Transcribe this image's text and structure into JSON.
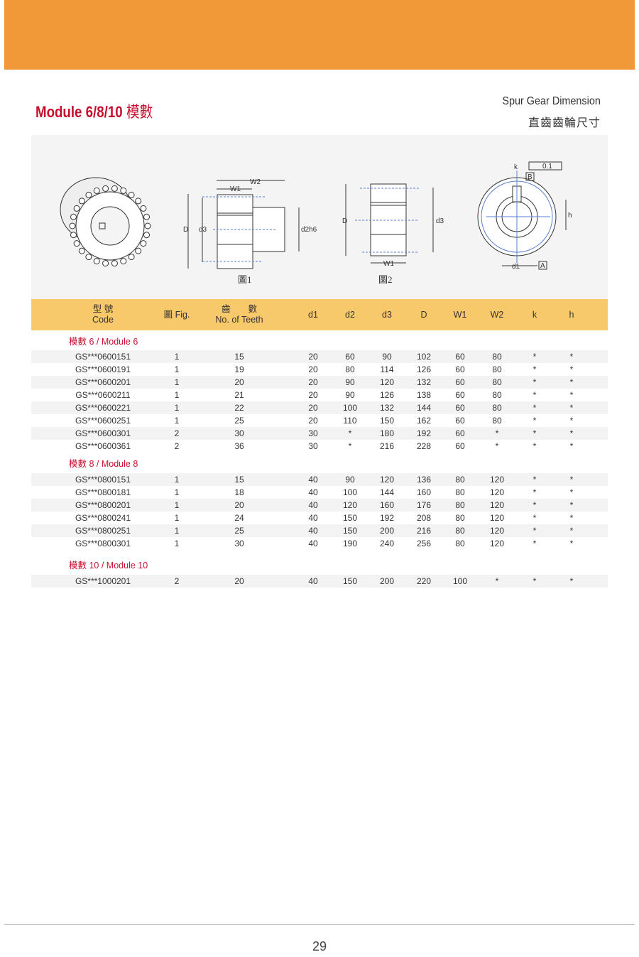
{
  "header": {
    "title_en": "Module 6/8/10",
    "title_zh": "模數",
    "subtitle_en": "Spur Gear Dimension",
    "subtitle_zh": "直齒齒輪尺寸"
  },
  "figures": {
    "fig1": {
      "caption": "圖1",
      "labels": {
        "W2": "W2",
        "W1": "W1",
        "D": "D",
        "d3": "d3",
        "d2h6": "d2h6"
      }
    },
    "fig2": {
      "caption": "圖2",
      "labels": {
        "D": "D",
        "d3": "d3",
        "W1": "W1"
      }
    },
    "fig3": {
      "labels": {
        "k": "k",
        "tol": "0.1",
        "B": "B",
        "h": "h",
        "d1": "d1",
        "A": "A"
      }
    }
  },
  "table": {
    "columns": [
      {
        "zh": "型 號",
        "en": "Code"
      },
      {
        "zh": "",
        "en": "圖 Fig."
      },
      {
        "zh": "齒　　數",
        "en": "No. of Teeth"
      },
      {
        "zh": "",
        "en": "d1"
      },
      {
        "zh": "",
        "en": "d2"
      },
      {
        "zh": "",
        "en": "d3"
      },
      {
        "zh": "",
        "en": "D"
      },
      {
        "zh": "",
        "en": "W1"
      },
      {
        "zh": "",
        "en": "W2"
      },
      {
        "zh": "",
        "en": "k"
      },
      {
        "zh": "",
        "en": "h"
      }
    ],
    "sections": [
      {
        "label": "模數 6 /  Module 6",
        "rows": [
          [
            "GS***0600151",
            "1",
            "15",
            "20",
            "60",
            "90",
            "102",
            "60",
            "80",
            "*",
            "*"
          ],
          [
            "GS***0600191",
            "1",
            "19",
            "20",
            "80",
            "114",
            "126",
            "60",
            "80",
            "*",
            "*"
          ],
          [
            "GS***0600201",
            "1",
            "20",
            "20",
            "90",
            "120",
            "132",
            "60",
            "80",
            "*",
            "*"
          ],
          [
            "GS***0600211",
            "1",
            "21",
            "20",
            "90",
            "126",
            "138",
            "60",
            "80",
            "*",
            "*"
          ],
          [
            "GS***0600221",
            "1",
            "22",
            "20",
            "100",
            "132",
            "144",
            "60",
            "80",
            "*",
            "*"
          ],
          [
            "GS***0600251",
            "1",
            "25",
            "20",
            "110",
            "150",
            "162",
            "60",
            "80",
            "*",
            "*"
          ],
          [
            "GS***0600301",
            "2",
            "30",
            "30",
            "*",
            "180",
            "192",
            "60",
            "*",
            "*",
            "*"
          ],
          [
            "GS***0600361",
            "2",
            "36",
            "30",
            "*",
            "216",
            "228",
            "60",
            "*",
            "*",
            "*"
          ]
        ]
      },
      {
        "label": "模數 8 /  Module 8",
        "rows": [
          [
            "GS***0800151",
            "1",
            "15",
            "40",
            "90",
            "120",
            "136",
            "80",
            "120",
            "*",
            "*"
          ],
          [
            "GS***0800181",
            "1",
            "18",
            "40",
            "100",
            "144",
            "160",
            "80",
            "120",
            "*",
            "*"
          ],
          [
            "GS***0800201",
            "1",
            "20",
            "40",
            "120",
            "160",
            "176",
            "80",
            "120",
            "*",
            "*"
          ],
          [
            "GS***0800241",
            "1",
            "24",
            "40",
            "150",
            "192",
            "208",
            "80",
            "120",
            "*",
            "*"
          ],
          [
            "GS***0800251",
            "1",
            "25",
            "40",
            "150",
            "200",
            "216",
            "80",
            "120",
            "*",
            "*"
          ],
          [
            "GS***0800301",
            "1",
            "30",
            "40",
            "190",
            "240",
            "256",
            "80",
            "120",
            "*",
            "*"
          ]
        ]
      },
      {
        "label": "模數 10 /  Module 10",
        "rows": [
          [
            "GS***1000201",
            "2",
            "20",
            "40",
            "150",
            "200",
            "220",
            "100",
            "*",
            "*",
            "*"
          ]
        ]
      }
    ]
  },
  "footer": {
    "page_number": "29"
  }
}
